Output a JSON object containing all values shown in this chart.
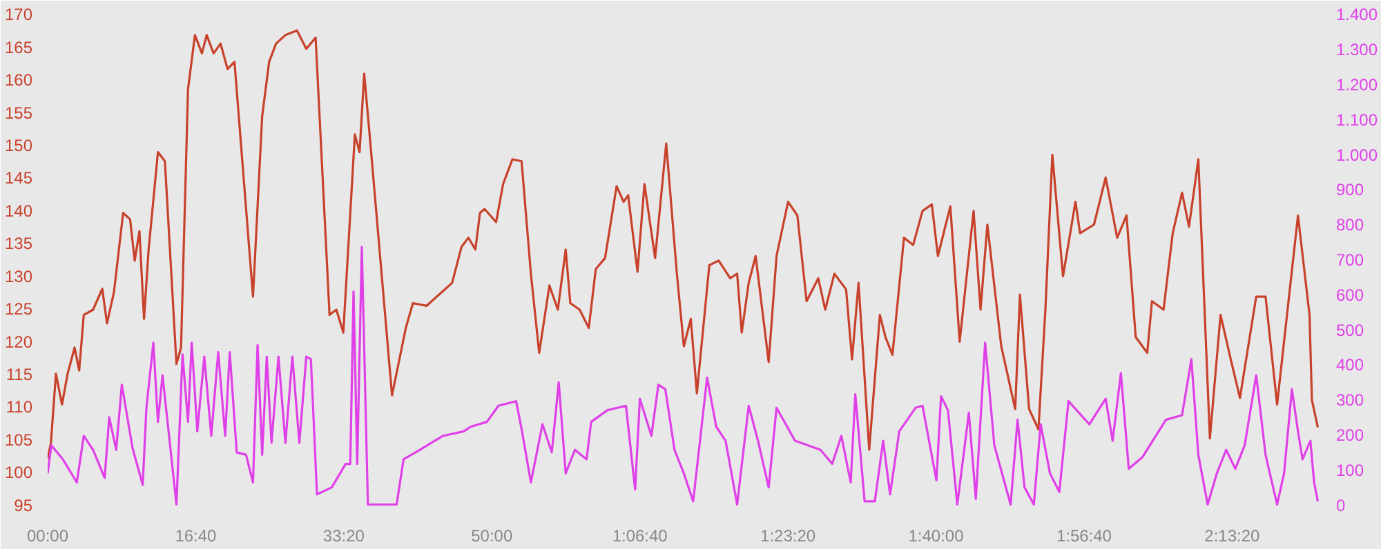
{
  "chart_data": {
    "type": "line",
    "xlim": [
      0,
      8600
    ],
    "ylim": [
      94,
      171
    ],
    "y2lim": [
      -18.7,
      1418.7
    ],
    "xticks": [
      {
        "value": 0,
        "label": "00:00"
      },
      {
        "value": 1000,
        "label": "16:40"
      },
      {
        "value": 2000,
        "label": "33:20"
      },
      {
        "value": 3000,
        "label": "50:00"
      },
      {
        "value": 4000,
        "label": "1:06:40"
      },
      {
        "value": 5000,
        "label": "1:23:20"
      },
      {
        "value": 6000,
        "label": "1:40:00"
      },
      {
        "value": 7000,
        "label": "1:56:40"
      },
      {
        "value": 8000,
        "label": "2:13:20"
      }
    ],
    "yticks": [
      95,
      100,
      105,
      110,
      115,
      120,
      125,
      130,
      135,
      140,
      145,
      150,
      155,
      160,
      165,
      170
    ],
    "y2ticks": [
      0,
      100,
      200,
      300,
      400,
      500,
      600,
      700,
      800,
      900,
      {
        "value": 1000,
        "label": "1.000"
      },
      {
        "value": 1100,
        "label": "1.100"
      },
      {
        "value": 1200,
        "label": "1.200"
      },
      {
        "value": 1300,
        "label": "1.300"
      },
      {
        "value": 1400,
        "label": "1.400"
      }
    ],
    "series": [
      {
        "color": "#c8412b",
        "x": [
          0,
          22,
          56,
          97,
          135,
          182,
          213,
          244,
          307,
          369,
          401,
          448,
          510,
          557,
          588,
          620,
          651,
          682,
          745,
          792,
          870,
          901,
          948,
          995,
          1042,
          1074,
          1121,
          1168,
          1215,
          1262,
          1387,
          1449,
          1496,
          1543,
          1606,
          1684,
          1747,
          1810,
          1904,
          1950,
          1997,
          2075,
          2107,
          2138,
          2185,
          2326,
          2419,
          2467,
          2560,
          2732,
          2795,
          2842,
          2889,
          2920,
          2951,
          3029,
          3076,
          3139,
          3201,
          3264,
          3320,
          3389,
          3446,
          3499,
          3530,
          3593,
          3655,
          3702,
          3765,
          3843,
          3890,
          3921,
          3984,
          4031,
          4103,
          4178,
          4250,
          4297,
          4344,
          4385,
          4469,
          4532,
          4610,
          4657,
          4688,
          4735,
          4782,
          4870,
          4923,
          5001,
          5064,
          5126,
          5205,
          5252,
          5314,
          5393,
          5433,
          5477,
          5549,
          5621,
          5659,
          5706,
          5784,
          5846,
          5909,
          5972,
          6013,
          6097,
          6160,
          6254,
          6301,
          6347,
          6441,
          6535,
          6567,
          6629,
          6692,
          6739,
          6786,
          6858,
          6942,
          6973,
          7067,
          7146,
          7224,
          7287,
          7349,
          7427,
          7459,
          7537,
          7599,
          7662,
          7709,
          7772,
          7850,
          7922,
          7991,
          8053,
          8163,
          8226,
          8304,
          8445,
          8523,
          8539,
          8579
        ],
        "values": [
          102,
          104.4,
          115,
          110.3,
          115,
          119,
          115.5,
          124,
          124.8,
          128,
          122.7,
          127.5,
          139.6,
          138.6,
          132.3,
          136.8,
          123.4,
          134,
          148.9,
          147.5,
          116.5,
          119,
          158.5,
          166.8,
          164,
          166.8,
          164,
          165.5,
          161.6,
          162.7,
          126.8,
          154.4,
          162.7,
          165.5,
          166.8,
          167.5,
          164.7,
          166.4,
          124,
          124.8,
          121.3,
          151.6,
          148.9,
          160.9,
          148.9,
          111.7,
          122,
          125.8,
          125.4,
          128.9,
          134.4,
          135.8,
          134,
          139.6,
          140.2,
          138.2,
          144,
          147.8,
          147.5,
          130.3,
          118.2,
          128.5,
          124.8,
          134,
          125.8,
          124.8,
          122,
          131,
          132.7,
          143.7,
          141.3,
          142.3,
          130.6,
          144,
          132.7,
          150.2,
          130.3,
          119.2,
          123.4,
          112,
          131.6,
          132.3,
          129.6,
          130.3,
          121.3,
          128.9,
          133,
          116.8,
          133,
          141.3,
          139.2,
          126.1,
          129.6,
          124.8,
          130.3,
          127.9,
          117.2,
          128.9,
          103.4,
          124,
          120.6,
          117.9,
          135.8,
          134.7,
          139.9,
          140.9,
          133,
          140.6,
          119.9,
          139.9,
          124.8,
          137.8,
          119.2,
          109.6,
          127.1,
          109.6,
          106.5,
          124.8,
          148.5,
          129.9,
          141.3,
          136.5,
          137.8,
          145,
          135.8,
          139.2,
          120.6,
          118.2,
          126.1,
          124.8,
          136.5,
          142.7,
          137.5,
          147.8,
          105.1,
          124,
          117.2,
          111.3,
          126.8,
          126.8,
          110.3,
          139.2,
          124,
          111,
          106.8
        ]
      },
      {
        "color": "#e040e8",
        "axis": "y2",
        "x": [
          0,
          25,
          103,
          197,
          244,
          307,
          385,
          416,
          463,
          501,
          573,
          642,
          667,
          714,
          745,
          776,
          870,
          911,
          948,
          973,
          1011,
          1058,
          1105,
          1152,
          1199,
          1230,
          1277,
          1340,
          1387,
          1418,
          1449,
          1480,
          1512,
          1559,
          1606,
          1653,
          1700,
          1747,
          1778,
          1819,
          1919,
          2013,
          2044,
          2066,
          2091,
          2122,
          2163,
          2357,
          2404,
          2513,
          2670,
          2811,
          2857,
          2967,
          3045,
          3164,
          3201,
          3264,
          3342,
          3405,
          3452,
          3499,
          3561,
          3640,
          3671,
          3780,
          3906,
          3968,
          4000,
          4078,
          4125,
          4172,
          4234,
          4297,
          4360,
          4454,
          4516,
          4579,
          4657,
          4735,
          4798,
          4870,
          4923,
          5048,
          5220,
          5299,
          5361,
          5424,
          5455,
          5518,
          5587,
          5643,
          5690,
          5752,
          5862,
          5909,
          6003,
          6034,
          6081,
          6144,
          6222,
          6269,
          6332,
          6394,
          6504,
          6551,
          6598,
          6661,
          6707,
          6770,
          6833,
          6895,
          7036,
          7146,
          7193,
          7249,
          7302,
          7396,
          7553,
          7662,
          7725,
          7772,
          7835,
          7897,
          7960,
          8022,
          8085,
          8163,
          8226,
          8304,
          8351,
          8404,
          8445,
          8476,
          8529,
          8554,
          8579
        ],
        "values": [
          89,
          169,
          129,
          63,
          196,
          156,
          76,
          249,
          156,
          342,
          162,
          56,
          276,
          462,
          236,
          369,
          0,
          429,
          236,
          462,
          209,
          422,
          196,
          435,
          196,
          435,
          149,
          142,
          63,
          455,
          142,
          422,
          176,
          422,
          176,
          422,
          176,
          422,
          415,
          29,
          49,
          116,
          116,
          608,
          116,
          735,
          0,
          0,
          129,
          156,
          196,
          209,
          222,
          236,
          282,
          295,
          216,
          63,
          229,
          149,
          349,
          89,
          156,
          129,
          236,
          269,
          282,
          43,
          302,
          196,
          342,
          329,
          156,
          89,
          9,
          362,
          222,
          182,
          0,
          282,
          182,
          49,
          276,
          182,
          156,
          116,
          196,
          63,
          315,
          9,
          9,
          182,
          29,
          209,
          276,
          282,
          69,
          309,
          269,
          0,
          262,
          16,
          462,
          169,
          0,
          242,
          49,
          0,
          229,
          89,
          36,
          295,
          229,
          302,
          182,
          375,
          102,
          136,
          242,
          255,
          415,
          142,
          0,
          89,
          156,
          102,
          169,
          369,
          142,
          0,
          89,
          329,
          209,
          129,
          182,
          63,
          9
        ]
      }
    ]
  }
}
